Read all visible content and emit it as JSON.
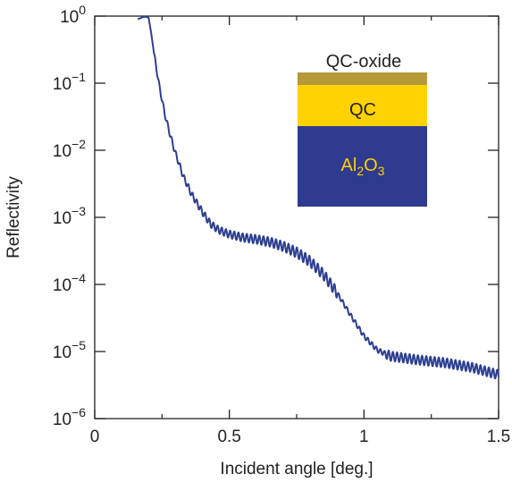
{
  "chart_data": {
    "type": "line",
    "xlabel": "Incident angle [deg.]",
    "ylabel": "Reflectivity",
    "xlim": [
      0,
      1.5
    ],
    "ylim": [
      1e-06,
      1
    ],
    "yscale": "log",
    "grid": false,
    "x_ticks": [
      {
        "value": 0,
        "label": "0"
      },
      {
        "value": 0.5,
        "label": "0.5"
      },
      {
        "value": 1,
        "label": "1"
      },
      {
        "value": 1.5,
        "label": "1.5"
      }
    ],
    "y_ticks": [
      {
        "exp": 0,
        "base": "10",
        "sup": "0"
      },
      {
        "exp": -1,
        "base": "10",
        "sup": "−1"
      },
      {
        "exp": -2,
        "base": "10",
        "sup": "−2"
      },
      {
        "exp": -3,
        "base": "10",
        "sup": "−3"
      },
      {
        "exp": -4,
        "base": "10",
        "sup": "−4"
      },
      {
        "exp": -5,
        "base": "10",
        "sup": "−5"
      },
      {
        "exp": -6,
        "base": "10",
        "sup": "−6"
      }
    ],
    "series": [
      {
        "color": "#2e3f91",
        "envelope": [
          [
            0.16,
            0.9
          ],
          [
            0.18,
            0.97
          ],
          [
            0.19,
            0.98
          ],
          [
            0.2,
            0.95
          ],
          [
            0.21,
            0.55
          ],
          [
            0.22,
            0.28
          ],
          [
            0.24,
            0.09
          ],
          [
            0.26,
            0.035
          ],
          [
            0.28,
            0.017
          ],
          [
            0.3,
            0.009
          ],
          [
            0.33,
            0.004
          ],
          [
            0.36,
            0.0022
          ],
          [
            0.4,
            0.0012
          ],
          [
            0.43,
            0.0008
          ],
          [
            0.46,
            0.00065
          ],
          [
            0.5,
            0.00056
          ],
          [
            0.55,
            0.0005
          ],
          [
            0.6,
            0.00047
          ],
          [
            0.65,
            0.00043
          ],
          [
            0.7,
            0.00037
          ],
          [
            0.75,
            0.0003
          ],
          [
            0.8,
            0.00022
          ],
          [
            0.85,
            0.00014
          ],
          [
            0.9,
            7.5e-05
          ],
          [
            0.95,
            3.5e-05
          ],
          [
            1.0,
            1.7e-05
          ],
          [
            1.05,
            1.05e-05
          ],
          [
            1.1,
            8.5e-06
          ],
          [
            1.2,
            7.5e-06
          ],
          [
            1.3,
            6.8e-06
          ],
          [
            1.4,
            5.8e-06
          ],
          [
            1.5,
            4.5e-06
          ]
        ],
        "fringe_period_deg": 0.0155,
        "fringe_start_deg": 0.22
      }
    ]
  },
  "inset": {
    "layers": [
      {
        "label": "QC-oxide",
        "color": "#b59a3a",
        "text_color": "#222222"
      },
      {
        "label": "QC",
        "color": "#ffd200",
        "text_color": "#222222"
      },
      {
        "label_parts": [
          {
            "t": "Al",
            "sub": false
          },
          {
            "t": "2",
            "sub": true
          },
          {
            "t": "O",
            "sub": false
          },
          {
            "t": "3",
            "sub": true
          }
        ],
        "color": "#2e3b8e",
        "text_color": "#ffd200"
      }
    ]
  }
}
